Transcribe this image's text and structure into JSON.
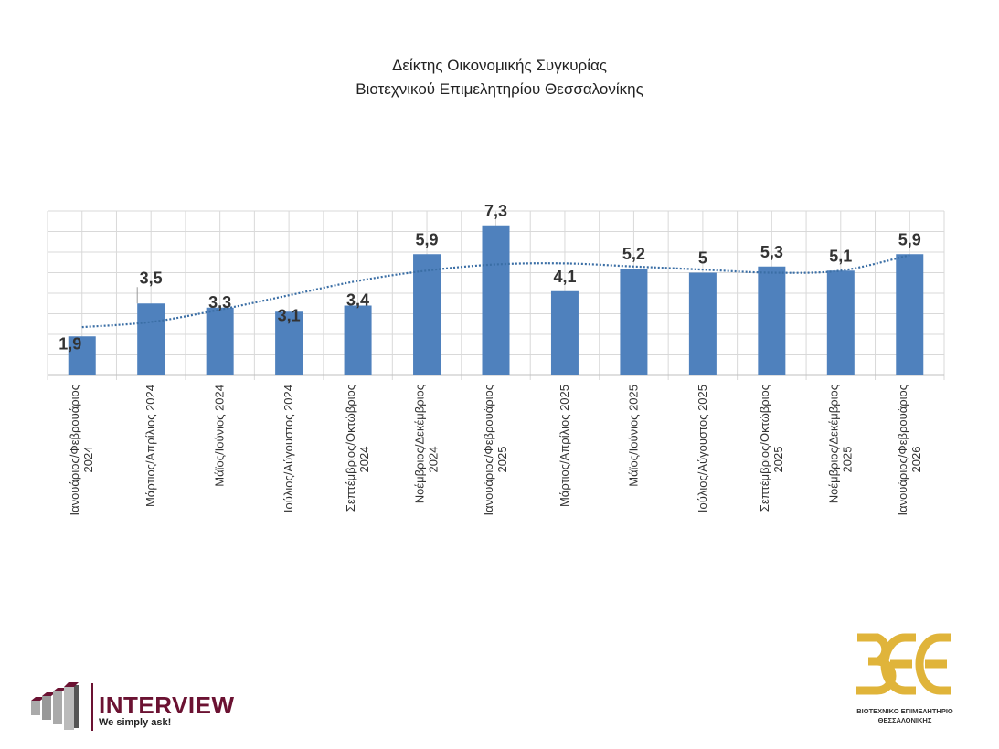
{
  "title_lines": [
    "Δείκτης Οικονομικής Συγκυρίας",
    "Βιοτεχνικού Επιμελητηρίου Θεσσαλονίκης"
  ],
  "chart_data": {
    "type": "bar",
    "title": "Δείκτης Οικονομικής Συγκυρίας Βιοτεχνικού Επιμελητηρίου Θεσσαλονίκης",
    "categories": [
      [
        "Ιανουάριος/Φεβρουάριος",
        "2024"
      ],
      [
        "Μάρτιος/Απρίλιος 2024"
      ],
      [
        "Μάϊος/Ιούνιος 2024"
      ],
      [
        "Ιούλιος/Αύγουστος 2024"
      ],
      [
        "Σεπτέμβριος/Οκτώβριος",
        "2024"
      ],
      [
        "Νοέμβριος/Δεκέμβριος",
        "2024"
      ],
      [
        "Ιανουάριος/Φεβρουάριος",
        "2025"
      ],
      [
        "Μάρτιος/Απρίλιος 2025"
      ],
      [
        "Μάϊος/Ιούνιος 2025"
      ],
      [
        "Ιούλιος/Αύγουστος 2025"
      ],
      [
        "Σεπτέμβριος/Οκτώβριος",
        "2025"
      ],
      [
        "Νοέμβριος/Δεκέμβριος",
        "2025"
      ],
      [
        "Ιανουάριος/Φεβρουάριος",
        "2026"
      ]
    ],
    "values": [
      1.9,
      3.5,
      3.3,
      3.1,
      3.4,
      5.9,
      7.3,
      4.1,
      5.2,
      5.0,
      5.3,
      5.1,
      5.9
    ],
    "data_labels": [
      "1,9",
      "3,5",
      "3,3",
      "3,1",
      "3,4",
      "5,9",
      "7,3",
      "4,1",
      "5,2",
      "5",
      "5,3",
      "5,1",
      "5,9"
    ],
    "trendline": {
      "type": "polynomial",
      "style": "dotted",
      "values": [
        2.35,
        2.6,
        3.2,
        3.9,
        4.6,
        5.1,
        5.4,
        5.45,
        5.3,
        5.15,
        5.0,
        5.1,
        5.85
      ]
    },
    "ylim": [
      0,
      8
    ],
    "grid": true,
    "legend": "none",
    "xlabel": "",
    "ylabel": "",
    "colors": {
      "bar": "#4f81bd",
      "trend": "#3a6ea5",
      "grid": "#d9d9d9",
      "label": "#333333"
    }
  },
  "logos": {
    "interview": {
      "name": "INTERVIEW",
      "tagline": "We simply ask!",
      "color": "#6b1232"
    },
    "bee": {
      "mark": "ΒΕΕ",
      "line1": "ΒΙΟΤΕΧΝΙΚΟ ΕΠΙΜΕΛΗΤΗΡΙΟ",
      "line2": "ΘΕΣΣΑΛΟΝΙΚΗΣ",
      "color": "#e0b43a"
    }
  }
}
